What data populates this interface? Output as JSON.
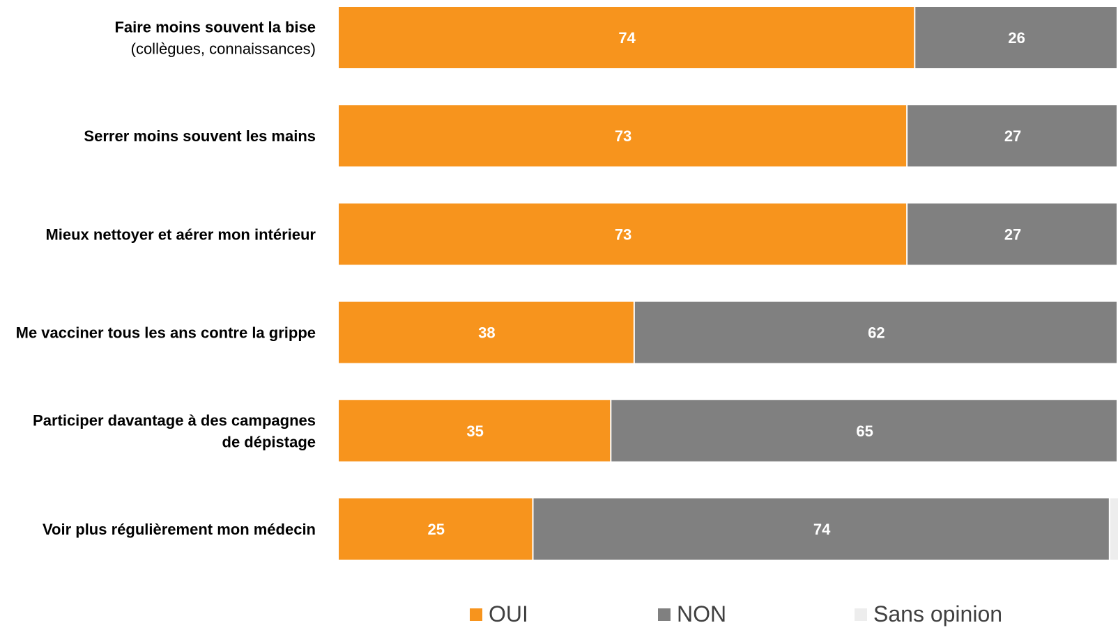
{
  "chart_data": {
    "type": "bar",
    "orientation": "horizontal",
    "stacked": true,
    "categories": [
      [
        "Faire moins souvent la bise",
        "(collègues, connaissances)"
      ],
      [
        "Serrer moins souvent les mains"
      ],
      [
        "Mieux nettoyer et aérer mon intérieur"
      ],
      [
        "Me vacciner tous les ans contre la grippe"
      ],
      [
        "Participer davantage à des campagnes",
        "de dépistage"
      ],
      [
        "Voir plus régulièrement mon médecin"
      ]
    ],
    "category_bold_lines": [
      [
        true,
        false
      ],
      [
        true
      ],
      [
        true
      ],
      [
        true
      ],
      [
        true,
        true
      ],
      [
        true
      ]
    ],
    "series": [
      {
        "name": "OUI",
        "values": [
          74,
          73,
          73,
          38,
          35,
          25
        ]
      },
      {
        "name": "NON",
        "values": [
          26,
          27,
          27,
          62,
          65,
          74
        ]
      },
      {
        "name": "Sans opinion",
        "values": [
          0,
          0,
          0,
          0,
          0,
          1
        ]
      }
    ],
    "xlim": [
      0,
      100
    ],
    "grid": false,
    "legend_position": "bottom",
    "colors": {
      "OUI": "#F7941D",
      "NON": "#808080",
      "Sans opinion": "#EDEDED"
    }
  }
}
